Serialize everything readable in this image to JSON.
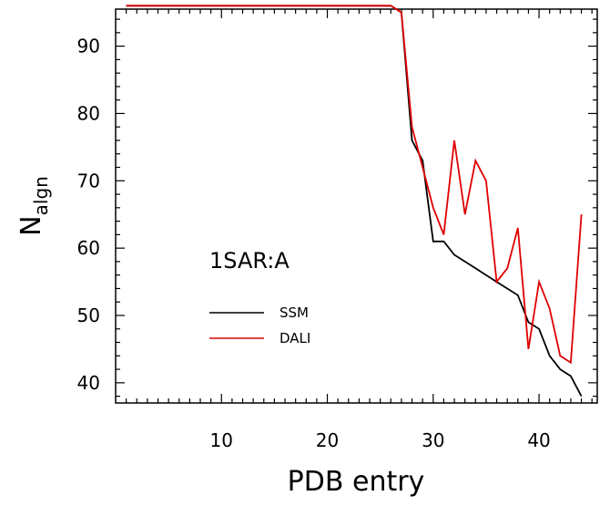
{
  "chart_data": {
    "type": "line",
    "title": "",
    "annotation": "1SAR:A",
    "xlabel": "PDB entry",
    "ylabel_main": "N",
    "ylabel_sub": "algn",
    "xlim": [
      0,
      45.5
    ],
    "ylim": [
      37,
      95.5
    ],
    "xticks": [
      10,
      20,
      30,
      40
    ],
    "yticks": [
      40,
      50,
      60,
      70,
      80,
      90
    ],
    "grid": false,
    "legend_position": "left-middle",
    "series": [
      {
        "name": "SSM",
        "color": "#000000",
        "points": [
          [
            1,
            96
          ],
          [
            2,
            96
          ],
          [
            3,
            96
          ],
          [
            4,
            96
          ],
          [
            5,
            96
          ],
          [
            6,
            96
          ],
          [
            7,
            96
          ],
          [
            8,
            96
          ],
          [
            9,
            96
          ],
          [
            10,
            96
          ],
          [
            11,
            96
          ],
          [
            12,
            96
          ],
          [
            13,
            96
          ],
          [
            14,
            96
          ],
          [
            15,
            96
          ],
          [
            16,
            96
          ],
          [
            17,
            96
          ],
          [
            18,
            96
          ],
          [
            19,
            96
          ],
          [
            20,
            96
          ],
          [
            21,
            96
          ],
          [
            22,
            96
          ],
          [
            23,
            96
          ],
          [
            24,
            96
          ],
          [
            25,
            96
          ],
          [
            26,
            96
          ],
          [
            27,
            95
          ],
          [
            28,
            76
          ],
          [
            29,
            73
          ],
          [
            30,
            61
          ],
          [
            31,
            61
          ],
          [
            32,
            59
          ],
          [
            33,
            58
          ],
          [
            34,
            57
          ],
          [
            35,
            56
          ],
          [
            36,
            55
          ],
          [
            37,
            54
          ],
          [
            38,
            53
          ],
          [
            39,
            49
          ],
          [
            40,
            48
          ],
          [
            41,
            44
          ],
          [
            42,
            42
          ],
          [
            43,
            41
          ],
          [
            44,
            38
          ]
        ]
      },
      {
        "name": "DALI",
        "color": "#e00000",
        "points": [
          [
            1,
            96
          ],
          [
            2,
            96
          ],
          [
            3,
            96
          ],
          [
            4,
            96
          ],
          [
            5,
            96
          ],
          [
            6,
            96
          ],
          [
            7,
            96
          ],
          [
            8,
            96
          ],
          [
            9,
            96
          ],
          [
            10,
            96
          ],
          [
            11,
            96
          ],
          [
            12,
            96
          ],
          [
            13,
            96
          ],
          [
            14,
            96
          ],
          [
            15,
            96
          ],
          [
            16,
            96
          ],
          [
            17,
            96
          ],
          [
            18,
            96
          ],
          [
            19,
            96
          ],
          [
            20,
            96
          ],
          [
            21,
            96
          ],
          [
            22,
            96
          ],
          [
            23,
            96
          ],
          [
            24,
            96
          ],
          [
            25,
            96
          ],
          [
            26,
            96
          ],
          [
            27,
            95
          ],
          [
            28,
            78
          ],
          [
            29,
            72
          ],
          [
            30,
            66
          ],
          [
            31,
            62
          ],
          [
            32,
            76
          ],
          [
            33,
            65
          ],
          [
            34,
            73
          ],
          [
            35,
            70
          ],
          [
            36,
            55
          ],
          [
            37,
            57
          ],
          [
            38,
            63
          ],
          [
            39,
            45
          ],
          [
            40,
            55
          ],
          [
            41,
            51
          ],
          [
            42,
            44
          ],
          [
            43,
            43
          ],
          [
            44,
            65
          ]
        ]
      }
    ]
  }
}
